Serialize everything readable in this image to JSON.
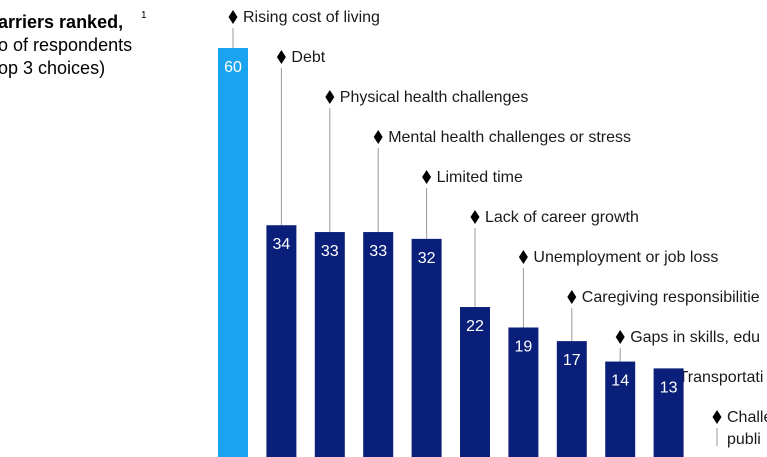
{
  "chart_data": {
    "type": "bar",
    "title": "arriers ranked,",
    "title_superscript": "1",
    "subtitle_lines": [
      "o of respondents",
      "op 3 choices)"
    ],
    "categories": [
      "Rising cost of living",
      "Debt",
      "Physical health challenges",
      "Mental health challenges or stress",
      "Limited time",
      "Lack of career growth",
      "Unemployment or job loss",
      "Caregiving responsibilitie",
      "Gaps in skills, edu",
      "Transportati",
      "Challe"
    ],
    "extra_label_line": "publi",
    "values": [
      60,
      34,
      33,
      33,
      32,
      22,
      19,
      17,
      14,
      13,
      null
    ],
    "value_labels": [
      "60",
      "34",
      "33",
      "33",
      "32",
      "22",
      "19",
      "17",
      "14",
      "13",
      ""
    ],
    "ylim": [
      0,
      60
    ],
    "colors": {
      "highlight": "#1aa3f0",
      "default": "#0a1f7a",
      "leader": "#9a9a9a",
      "text": "#1a1a1a"
    },
    "highlight_index": 0
  }
}
